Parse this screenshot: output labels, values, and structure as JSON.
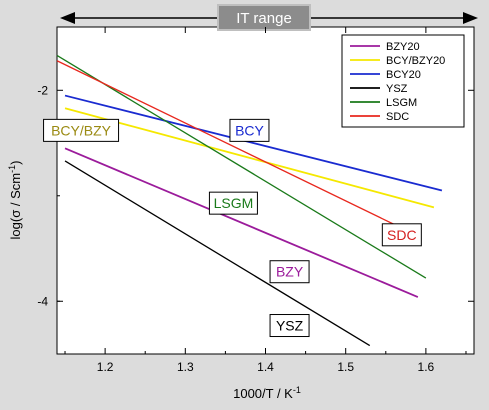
{
  "chart_data": {
    "type": "line",
    "title": "",
    "xlabel": "1000/T / K",
    "xlabel_superscript": "-1",
    "ylabel": "log(σ / Scm",
    "ylabel_superscript": "-1",
    "ylabel_suffix": ")",
    "xlim": [
      1.14,
      1.66
    ],
    "ylim": [
      -4.5,
      -1.4
    ],
    "x_ticks": [
      1.2,
      1.3,
      1.4,
      1.5,
      1.6
    ],
    "x_tick_labels": [
      "1.2",
      "1.3",
      "1.4",
      "1.5",
      "1.6"
    ],
    "y_ticks": [
      -2,
      -4
    ],
    "y_tick_labels": [
      "-2",
      "-4"
    ],
    "grid": false,
    "legend_position": "top-right",
    "top_annotation": "IT range",
    "series": [
      {
        "name": "BZY20",
        "color": "#9b1b9b",
        "x": [
          1.15,
          1.59
        ],
        "y": [
          -2.55,
          -3.96
        ],
        "inline_label": "BZY",
        "label_color": "#9b1b9b",
        "label_x": 1.43,
        "label_y": -3.72
      },
      {
        "name": "BCY/BZY20",
        "color": "#f5e800",
        "x": [
          1.15,
          1.61
        ],
        "y": [
          -2.17,
          -3.11
        ],
        "inline_label": "BCY/BZY",
        "label_color": "#9a8a12",
        "label_x": 1.17,
        "label_y": -2.38
      },
      {
        "name": "BCY20",
        "color": "#1a2bd0",
        "x": [
          1.15,
          1.62
        ],
        "y": [
          -2.05,
          -2.95
        ],
        "inline_label": "BCY",
        "label_color": "#1a2bd0",
        "label_x": 1.38,
        "label_y": -2.38
      },
      {
        "name": "YSZ",
        "color": "#000000",
        "x": [
          1.15,
          1.53
        ],
        "y": [
          -2.67,
          -4.42
        ],
        "inline_label": "YSZ",
        "label_color": "#000000",
        "label_x": 1.43,
        "label_y": -4.23
      },
      {
        "name": "LSGM",
        "color": "#1a7a1a",
        "x": [
          1.14,
          1.6
        ],
        "y": [
          -1.67,
          -3.78
        ],
        "inline_label": "LSGM",
        "label_color": "#1a7a1a",
        "label_x": 1.36,
        "label_y": -3.07
      },
      {
        "name": "SDC",
        "color": "#e8281e",
        "x": [
          1.14,
          1.56
        ],
        "y": [
          -1.72,
          -3.27
        ],
        "inline_label": "SDC",
        "label_color": "#d42020",
        "label_x": 1.57,
        "label_y": -3.37
      }
    ]
  }
}
